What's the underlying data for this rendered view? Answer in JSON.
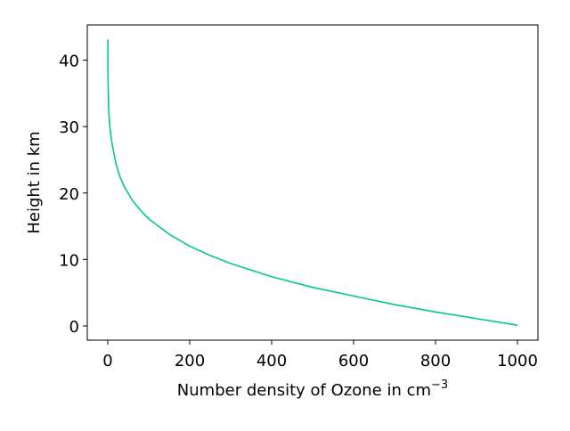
{
  "chart_data": {
    "type": "line",
    "title": "",
    "xlabel": "Number density of Ozone in cm",
    "xlabel_superscript": "−3",
    "ylabel": "Height in km",
    "xlim": [
      -50,
      1050
    ],
    "ylim": [
      -2.15,
      45.3
    ],
    "x_ticks": [
      0,
      200,
      400,
      600,
      800,
      1000
    ],
    "x_tick_labels": [
      "0",
      "200",
      "400",
      "600",
      "800",
      "1000"
    ],
    "y_ticks": [
      0,
      10,
      20,
      30,
      40
    ],
    "y_tick_labels": [
      "0",
      "10",
      "20",
      "30",
      "40"
    ],
    "grid": false,
    "legend": "none",
    "series": [
      {
        "color": "#00cc7a",
        "x": [
          1000,
          900,
          800,
          700,
          600,
          500,
          400,
          300,
          250,
          200,
          150,
          100,
          80,
          60,
          40,
          30,
          20,
          10,
          5,
          3,
          2,
          1,
          0.5,
          0.3
        ],
        "y": [
          0.1,
          1.1,
          2.1,
          3.2,
          4.5,
          5.8,
          7.4,
          9.4,
          10.6,
          12.0,
          13.8,
          16.1,
          17.4,
          18.9,
          21.0,
          22.4,
          24.4,
          27.6,
          30.0,
          31.8,
          33.4,
          36.0,
          38.5,
          43.1
        ]
      }
    ]
  }
}
